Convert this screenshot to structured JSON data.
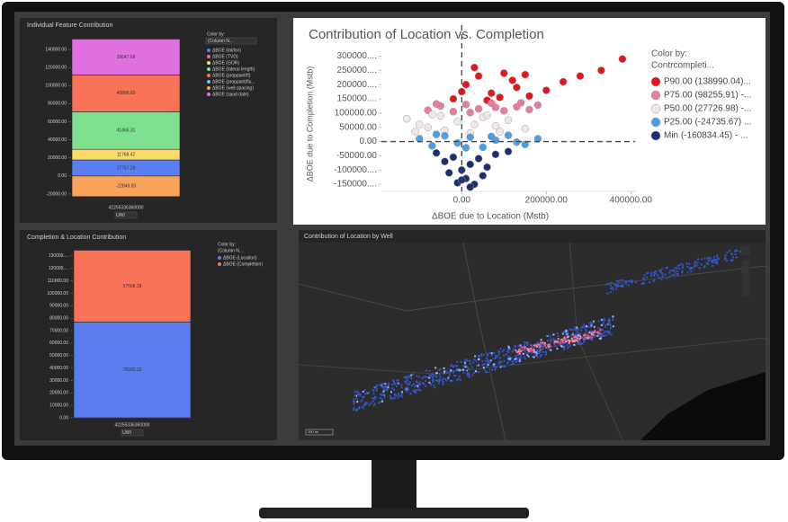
{
  "chart_data": [
    {
      "type": "bar",
      "stacked": true,
      "title": "Individual Feature Contribution",
      "legend_title": "Color by:",
      "legend_subtitle": "(Column N...",
      "categories": [
        "42255336360000"
      ],
      "x_label": "UWI",
      "ylim": [
        -25000,
        155000
      ],
      "yticks": [
        {
          "value": -20000,
          "label": "-20000.00"
        },
        {
          "value": 0,
          "label": "0.00"
        },
        {
          "value": 20000,
          "label": "20000.00"
        },
        {
          "value": 40000,
          "label": "40000.00"
        },
        {
          "value": 60000,
          "label": "60000.00"
        },
        {
          "value": 80000,
          "label": "80000.00"
        },
        {
          "value": 100000,
          "label": "100000.00"
        },
        {
          "value": 120000,
          "label": "120000.00"
        },
        {
          "value": 140000,
          "label": "140000.00"
        }
      ],
      "series": [
        {
          "name": "ΔBOE (lat/lon)",
          "color": "#5b7ff0",
          "values": [
            17757.28
          ]
        },
        {
          "name": "ΔBOE (TVD)",
          "color": "#f06aa8",
          "values": [
            null
          ]
        },
        {
          "name": "ΔBOE (GOR)",
          "color": "#fbdc6a",
          "values": [
            11768.42
          ]
        },
        {
          "name": "ΔBOE (lateral length)",
          "color": "#7ee08e",
          "values": [
            41466.31
          ]
        },
        {
          "name": "ΔBOE (proppant/ft)",
          "color": "#f87358",
          "values": [
            40888.63
          ]
        },
        {
          "name": "ΔBOE (proppant/flu...",
          "color": "#6fc6e8",
          "values": [
            null
          ]
        },
        {
          "name": "ΔBOE (well spacing)",
          "color": "#f8a25a",
          "values": [
            -22849.83
          ]
        },
        {
          "name": "ΔBOE (spud date)",
          "color": "#e070e0",
          "values": [
            39647.69
          ]
        }
      ]
    },
    {
      "type": "scatter",
      "title": "Contribution of Location vs. Completion",
      "x_label": "ΔBOE due to Location (Mstb)",
      "y_label": "ΔBOE due to Completion (Mstb)",
      "legend_title": "Color by:",
      "legend_subtitle": "Contrcompleti...",
      "xlim": [
        -190000,
        410000
      ],
      "xticks": [
        {
          "value": 0,
          "label": "0.00"
        },
        {
          "value": 200000,
          "label": "200000.00"
        },
        {
          "value": 400000,
          "label": "400000.00"
        }
      ],
      "ylim": [
        -175000,
        330000
      ],
      "yticks": [
        {
          "value": -150000,
          "label": "-150000...."
        },
        {
          "value": -100000,
          "label": "-100000...."
        },
        {
          "value": -50000,
          "label": "-50000.00"
        },
        {
          "value": 0,
          "label": "0.00"
        },
        {
          "value": 50000,
          "label": "50000.00"
        },
        {
          "value": 100000,
          "label": "100000.00"
        },
        {
          "value": 150000,
          "label": "150000...."
        },
        {
          "value": 200000,
          "label": "200000...."
        },
        {
          "value": 250000,
          "label": "250000...."
        },
        {
          "value": 300000,
          "label": "300000...."
        }
      ],
      "series": [
        {
          "name": "P90.00 (138990.04)...",
          "color": "#e8141c",
          "x": [
            -20000,
            10000,
            40000,
            70000,
            100000,
            130000,
            160000,
            200000,
            240000,
            280000,
            330000,
            380000,
            30000,
            60000,
            90000,
            120000,
            0,
            150000
          ],
          "y": [
            150000,
            200000,
            230000,
            170000,
            240000,
            190000,
            160000,
            180000,
            210000,
            230000,
            250000,
            290000,
            260000,
            145000,
            155000,
            215000,
            175000,
            235000
          ]
        },
        {
          "name": "P75.00 (98255.91) -...",
          "color": "#e87ca0",
          "x": [
            -80000,
            -50000,
            -20000,
            10000,
            40000,
            70000,
            100000,
            130000,
            160000,
            180000,
            -60000,
            20000,
            80000,
            140000
          ],
          "y": [
            110000,
            125000,
            105000,
            130000,
            115000,
            135000,
            108000,
            122000,
            112000,
            128000,
            132000,
            102000,
            120000,
            136000
          ]
        },
        {
          "name": "P50.00 (27726.98) -...",
          "color": "#f3e6e6",
          "x": [
            -130000,
            -100000,
            -70000,
            -40000,
            -10000,
            20000,
            50000,
            80000,
            110000,
            150000,
            -110000,
            -50000,
            30000,
            90000,
            -80000,
            60000
          ],
          "y": [
            80000,
            60000,
            95000,
            40000,
            70000,
            30000,
            85000,
            55000,
            75000,
            45000,
            35000,
            90000,
            60000,
            35000,
            50000,
            92000
          ]
        },
        {
          "name": "P25.00 (-24735.67) ...",
          "color": "#4aa0e6",
          "x": [
            -100000,
            -70000,
            -40000,
            -10000,
            20000,
            50000,
            80000,
            110000,
            150000,
            180000,
            -60000,
            10000,
            70000,
            130000
          ],
          "y": [
            10000,
            -15000,
            20000,
            -5000,
            15000,
            -20000,
            5000,
            22000,
            -10000,
            10000,
            25000,
            -22000,
            18000,
            -2000
          ]
        },
        {
          "name": "Min (-160834.45) - ...",
          "color": "#1e2f6e",
          "x": [
            -60000,
            -40000,
            -20000,
            0,
            20000,
            40000,
            60000,
            80000,
            110000,
            -30000,
            10000,
            50000,
            -10000,
            30000,
            20000,
            0
          ],
          "y": [
            -40000,
            -70000,
            -55000,
            -100000,
            -80000,
            -60000,
            -90000,
            -45000,
            -35000,
            -110000,
            -130000,
            -120000,
            -145000,
            -150000,
            -160000,
            -135000
          ]
        }
      ]
    },
    {
      "type": "bar",
      "stacked": true,
      "title": "Completion & Location Contribution",
      "legend_title": "Color by:",
      "legend_subtitle": "(Column N...",
      "categories": [
        "42255336360000"
      ],
      "x_label": "UWI",
      "ylim": [
        0,
        140000
      ],
      "yticks": [
        {
          "value": 0,
          "label": "0.00"
        },
        {
          "value": 10000,
          "label": "10000.00"
        },
        {
          "value": 20000,
          "label": "20000.00"
        },
        {
          "value": 30000,
          "label": "30000.00"
        },
        {
          "value": 40000,
          "label": "40000.00"
        },
        {
          "value": 50000,
          "label": "50000.00"
        },
        {
          "value": 60000,
          "label": "60000.00"
        },
        {
          "value": 70000,
          "label": "70000.00"
        },
        {
          "value": 80000,
          "label": "80000.00"
        },
        {
          "value": 90000,
          "label": "90000.00"
        },
        {
          "value": 100000,
          "label": "100000.00"
        },
        {
          "value": 110000,
          "label": "110000.00"
        },
        {
          "value": 120000,
          "label": "120000...."
        },
        {
          "value": 130000,
          "label": "130000...."
        }
      ],
      "series": [
        {
          "name": "ΔBOE (Location)",
          "color": "#5b7ff0",
          "values": [
            76920.32
          ]
        },
        {
          "name": "ΔBOE (Completion)",
          "color": "#f87358",
          "values": [
            57668.18
          ]
        }
      ]
    }
  ],
  "map": {
    "title": "Contribution of Location by Well",
    "scale": "100 mi"
  }
}
